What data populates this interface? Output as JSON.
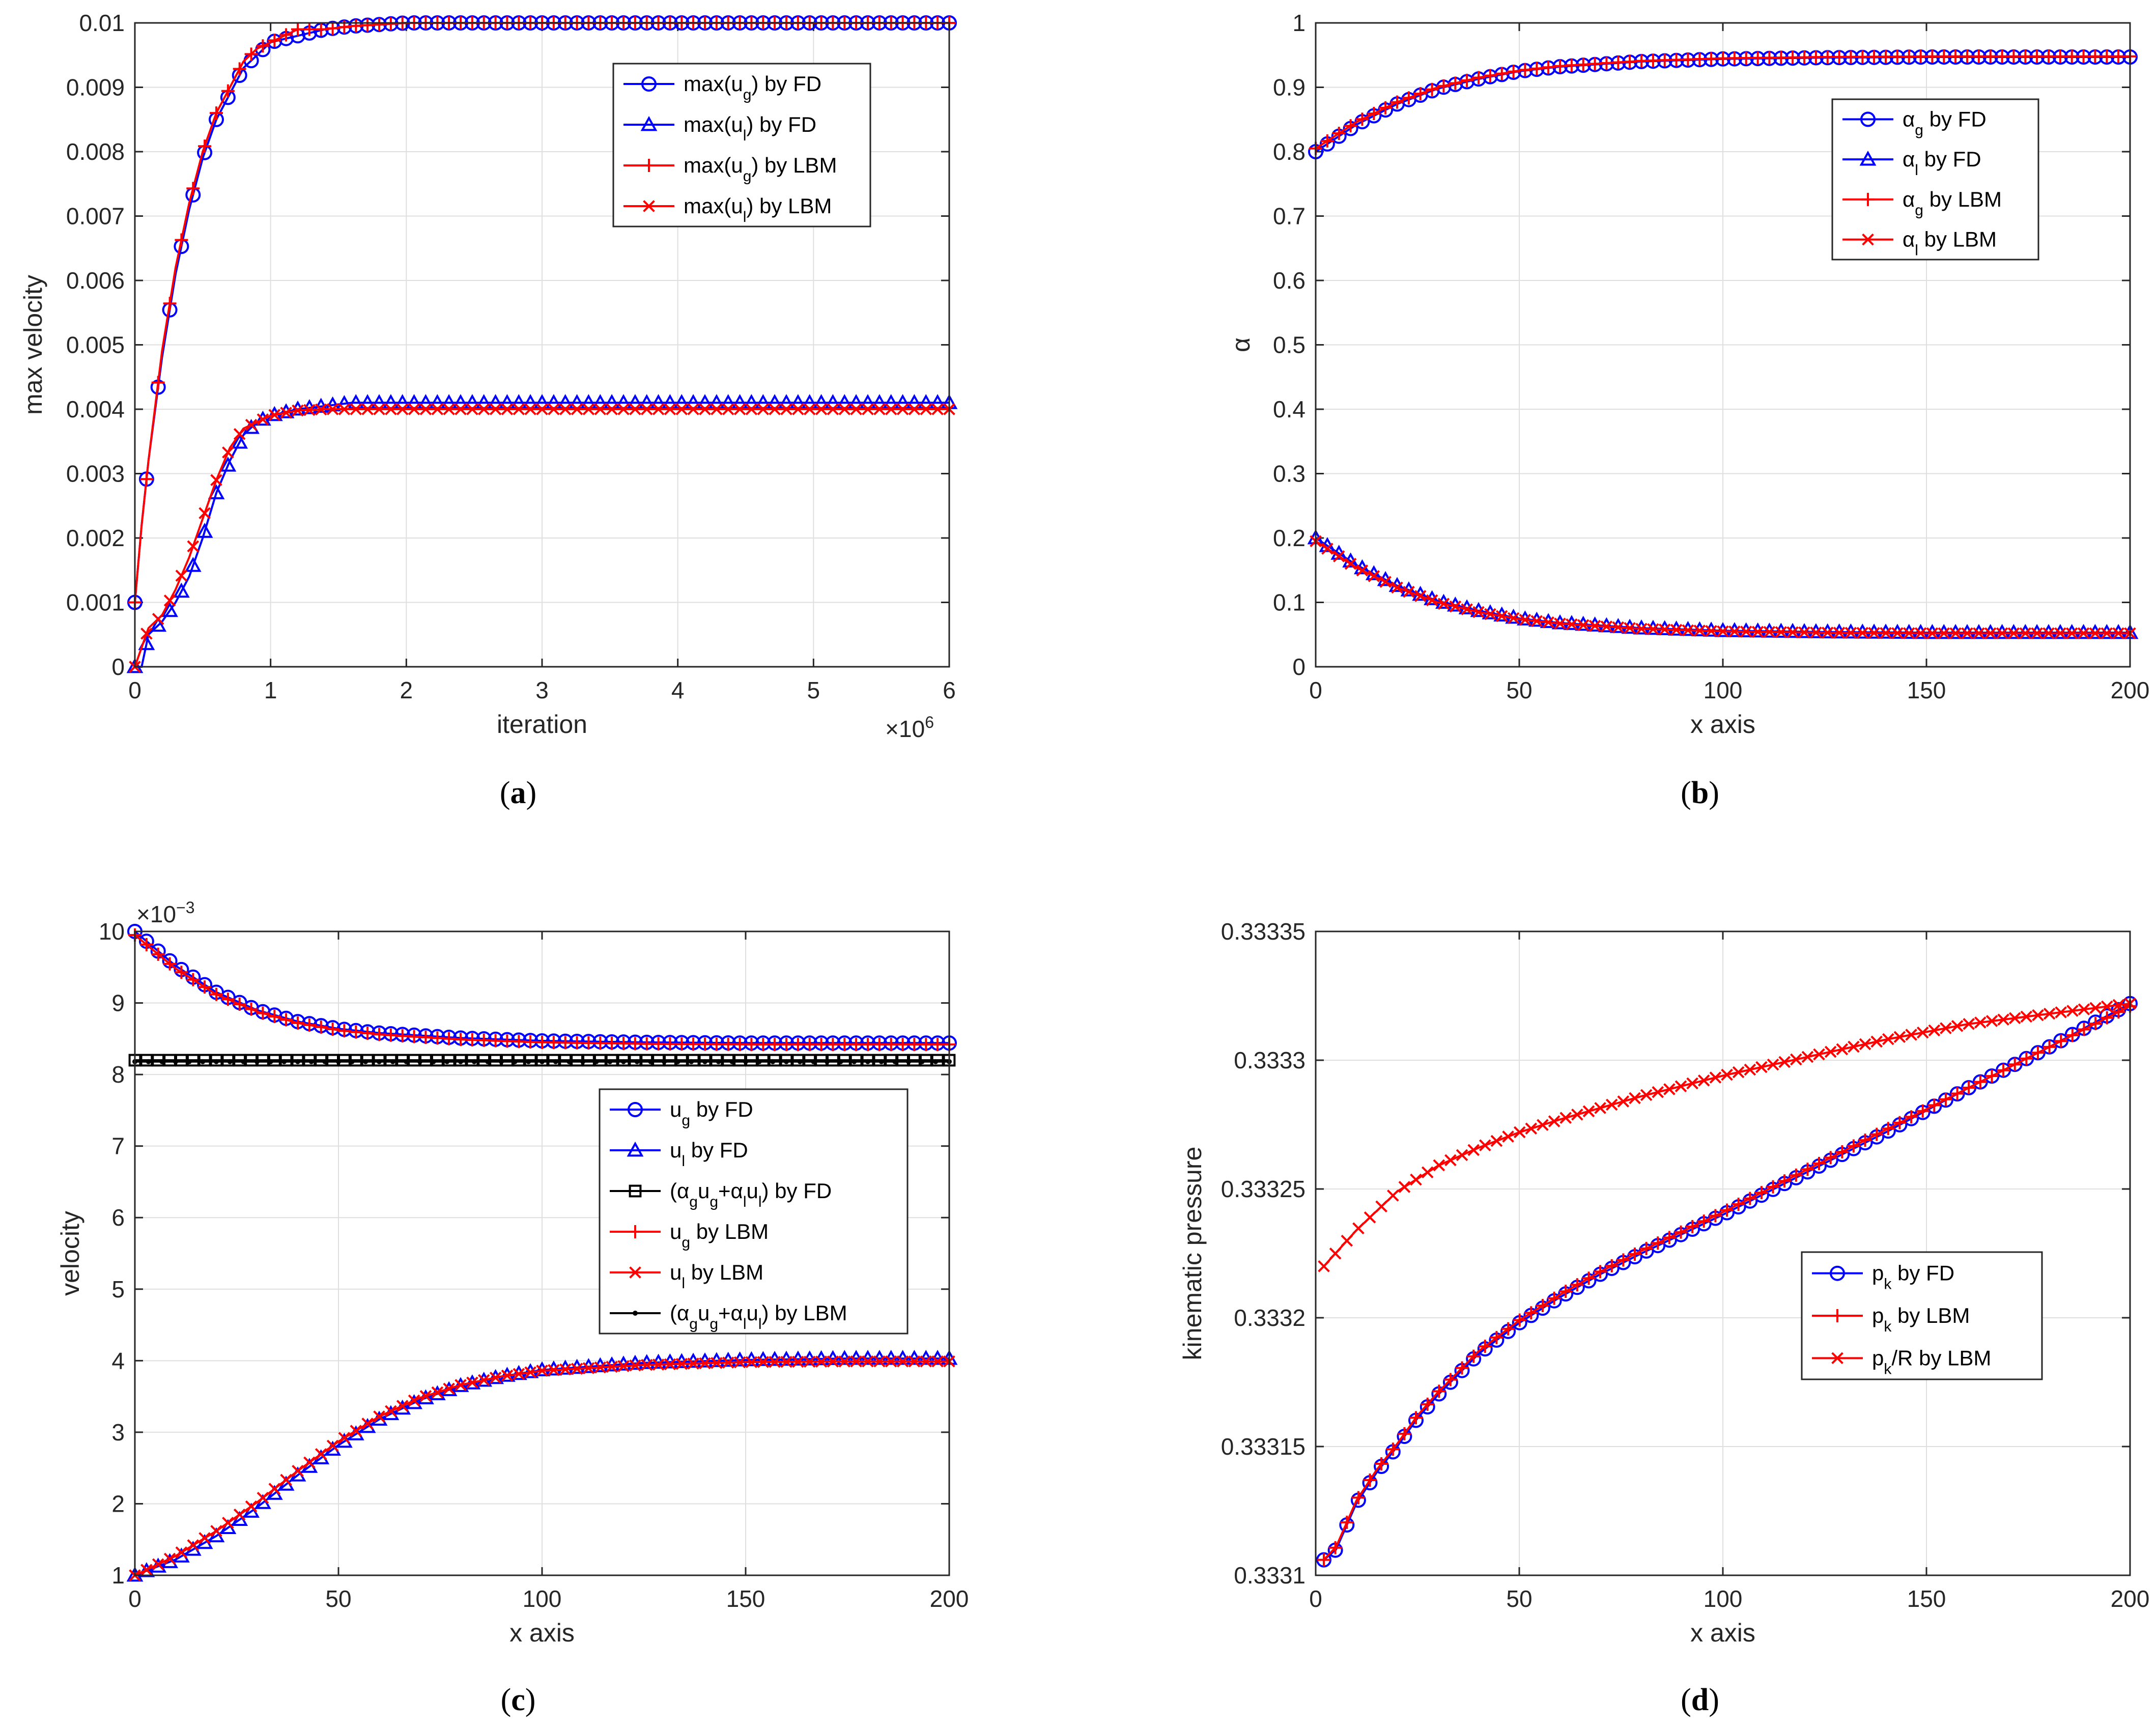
{
  "colors": {
    "fd": "#0000ff",
    "lbm": "#ff0000",
    "mix": "#000000",
    "grid": "#dfdfdf",
    "axis": "#262626"
  },
  "chart_data": [
    {
      "id": "a",
      "type": "line",
      "caption": "a",
      "xlabel": "iteration",
      "ylabel": "max velocity",
      "xlim": [
        0,
        6
      ],
      "ylim": [
        0,
        0.01
      ],
      "x_exponent": "×10",
      "x_exponent_power": "6",
      "xticks": [
        0,
        1,
        2,
        3,
        4,
        5,
        6
      ],
      "xtick_labels": [
        "0",
        "1",
        "2",
        "3",
        "4",
        "5",
        "6"
      ],
      "yticks": [
        0,
        0.001,
        0.002,
        0.003,
        0.004,
        0.005,
        0.006,
        0.007,
        0.008,
        0.009,
        0.01
      ],
      "ytick_labels": [
        "0",
        "0.001",
        "0.002",
        "0.003",
        "0.004",
        "0.005",
        "0.006",
        "0.007",
        "0.008",
        "0.009",
        "0.01"
      ],
      "grid": true,
      "legend_position": "top-right",
      "series": [
        {
          "name": "max(u_g) by FD",
          "label_parts": [
            "max(u",
            "g",
            ") by FD"
          ],
          "color": "fd",
          "marker": "circle",
          "x": [
            0,
            0.05,
            0.1,
            0.2,
            0.3,
            0.4,
            0.5,
            0.6,
            0.7,
            0.8,
            0.9,
            1.0,
            1.2,
            1.4,
            1.6,
            2.0,
            3.0,
            4.0,
            5.0,
            6.0
          ],
          "y": [
            0.001,
            0.0022,
            0.0032,
            0.0048,
            0.0061,
            0.0071,
            0.0079,
            0.0085,
            0.0089,
            0.0093,
            0.0095,
            0.0097,
            0.0098,
            0.0099,
            0.00995,
            0.01,
            0.01,
            0.01,
            0.01,
            0.01
          ]
        },
        {
          "name": "max(u_l) by FD",
          "label_parts": [
            "max(u",
            "l",
            ") by FD"
          ],
          "color": "fd",
          "marker": "triangle",
          "x": [
            0,
            0.05,
            0.1,
            0.2,
            0.3,
            0.4,
            0.5,
            0.6,
            0.7,
            0.8,
            0.9,
            1.0,
            1.2,
            1.4,
            1.6,
            2.0,
            3.0,
            4.0,
            5.0,
            6.0
          ],
          "y": [
            0,
            0,
            0.0005,
            0.0007,
            0.001,
            0.0014,
            0.002,
            0.0027,
            0.0032,
            0.0036,
            0.0038,
            0.0039,
            0.004,
            0.00405,
            0.0041,
            0.0041,
            0.0041,
            0.0041,
            0.0041,
            0.0041
          ]
        },
        {
          "name": "max(u_g) by LBM",
          "label_parts": [
            "max(u",
            "g",
            ") by LBM"
          ],
          "color": "lbm",
          "marker": "plus",
          "x": [
            0,
            0.05,
            0.1,
            0.2,
            0.3,
            0.4,
            0.5,
            0.6,
            0.7,
            0.8,
            0.9,
            1.0,
            1.2,
            1.4,
            1.6,
            2.0,
            3.0,
            4.0,
            5.0,
            6.0
          ],
          "y": [
            0.001,
            0.0022,
            0.0032,
            0.0049,
            0.0062,
            0.0072,
            0.008,
            0.0086,
            0.009,
            0.0094,
            0.0096,
            0.0097,
            0.0099,
            0.0099,
            0.00995,
            0.01,
            0.01,
            0.01,
            0.01,
            0.01
          ]
        },
        {
          "name": "max(u_l) by LBM",
          "label_parts": [
            "max(u",
            "l",
            ") by LBM"
          ],
          "color": "lbm",
          "marker": "x",
          "x": [
            0,
            0.05,
            0.1,
            0.2,
            0.3,
            0.4,
            0.5,
            0.6,
            0.7,
            0.8,
            0.9,
            1.0,
            1.2,
            1.4,
            1.6,
            2.0,
            3.0,
            4.0,
            5.0,
            6.0
          ],
          "y": [
            0,
            0.0003,
            0.0006,
            0.0008,
            0.0012,
            0.0017,
            0.0023,
            0.0029,
            0.0034,
            0.0037,
            0.0038,
            0.0039,
            0.00398,
            0.004,
            0.004,
            0.004,
            0.004,
            0.004,
            0.004,
            0.004
          ]
        }
      ]
    },
    {
      "id": "b",
      "type": "line",
      "caption": "b",
      "xlabel": "x axis",
      "ylabel": "α",
      "xlim": [
        0,
        200
      ],
      "ylim": [
        0,
        1
      ],
      "xticks": [
        0,
        50,
        100,
        150,
        200
      ],
      "xtick_labels": [
        "0",
        "50",
        "100",
        "150",
        "200"
      ],
      "yticks": [
        0,
        0.1,
        0.2,
        0.3,
        0.4,
        0.5,
        0.6,
        0.7,
        0.8,
        0.9,
        1
      ],
      "ytick_labels": [
        "0",
        "0.1",
        "0.2",
        "0.3",
        "0.4",
        "0.5",
        "0.6",
        "0.7",
        "0.8",
        "0.9",
        "1"
      ],
      "grid": true,
      "legend_position": "top-right",
      "series": [
        {
          "name": "α_g by FD",
          "label_parts": [
            "α",
            "g",
            " by FD"
          ],
          "color": "fd",
          "marker": "circle",
          "x": [
            0,
            10,
            20,
            30,
            40,
            50,
            60,
            80,
            100,
            125,
            150,
            175,
            200
          ],
          "y": [
            0.8,
            0.842,
            0.874,
            0.898,
            0.913,
            0.925,
            0.932,
            0.94,
            0.944,
            0.946,
            0.947,
            0.947,
            0.947
          ]
        },
        {
          "name": "α_l by FD",
          "label_parts": [
            "α",
            "l",
            " by FD"
          ],
          "color": "fd",
          "marker": "triangle",
          "x": [
            0,
            10,
            20,
            30,
            40,
            50,
            60,
            80,
            100,
            125,
            150,
            175,
            200
          ],
          "y": [
            0.2,
            0.158,
            0.126,
            0.102,
            0.087,
            0.075,
            0.068,
            0.06,
            0.056,
            0.054,
            0.053,
            0.053,
            0.053
          ]
        },
        {
          "name": "α_g by LBM",
          "label_parts": [
            "α",
            "g",
            " by LBM"
          ],
          "color": "lbm",
          "marker": "plus",
          "x": [
            0,
            10,
            20,
            30,
            40,
            50,
            60,
            80,
            100,
            125,
            150,
            175,
            200
          ],
          "y": [
            0.805,
            0.846,
            0.877,
            0.9,
            0.915,
            0.926,
            0.933,
            0.941,
            0.945,
            0.947,
            0.948,
            0.948,
            0.948
          ]
        },
        {
          "name": "α_l by LBM",
          "label_parts": [
            "α",
            "l",
            " by LBM"
          ],
          "color": "lbm",
          "marker": "x",
          "x": [
            0,
            10,
            20,
            30,
            40,
            50,
            60,
            80,
            100,
            125,
            150,
            175,
            200
          ],
          "y": [
            0.195,
            0.154,
            0.123,
            0.1,
            0.085,
            0.074,
            0.067,
            0.059,
            0.055,
            0.053,
            0.052,
            0.052,
            0.052
          ]
        }
      ]
    },
    {
      "id": "c",
      "type": "line",
      "caption": "c",
      "xlabel": "x axis",
      "ylabel": "velocity",
      "xlim": [
        0,
        200
      ],
      "ylim": [
        1,
        10
      ],
      "y_exponent": "×10",
      "y_exponent_power": "−3",
      "xticks": [
        0,
        50,
        100,
        150,
        200
      ],
      "xtick_labels": [
        "0",
        "50",
        "100",
        "150",
        "200"
      ],
      "yticks": [
        1,
        2,
        3,
        4,
        5,
        6,
        7,
        8,
        9,
        10
      ],
      "ytick_labels": [
        "1",
        "2",
        "3",
        "4",
        "5",
        "6",
        "7",
        "8",
        "9",
        "10"
      ],
      "grid": true,
      "legend_position": "right",
      "series": [
        {
          "name": "u_g by FD",
          "label_parts": [
            "u",
            "g",
            " by FD"
          ],
          "color": "fd",
          "marker": "circle",
          "x": [
            0,
            10,
            20,
            30,
            40,
            50,
            60,
            80,
            100,
            125,
            150,
            175,
            200
          ],
          "y": [
            10.0,
            9.52,
            9.15,
            8.9,
            8.74,
            8.64,
            8.58,
            8.51,
            8.47,
            8.45,
            8.44,
            8.44,
            8.44
          ]
        },
        {
          "name": "u_l by FD",
          "label_parts": [
            "u",
            "l",
            " by FD"
          ],
          "color": "fd",
          "marker": "triangle",
          "x": [
            0,
            10,
            20,
            30,
            40,
            50,
            60,
            70,
            80,
            90,
            100,
            125,
            150,
            175,
            200
          ],
          "y": [
            1.0,
            1.22,
            1.55,
            1.95,
            2.4,
            2.82,
            3.18,
            3.45,
            3.65,
            3.78,
            3.87,
            3.97,
            4.01,
            4.03,
            4.03
          ]
        },
        {
          "name": "(α_g u_g+α_l u_l) by FD",
          "label_parts": [
            "(α",
            "g",
            "u",
            "g",
            "+α",
            "l",
            "u",
            "l",
            ") by FD"
          ],
          "color": "mix",
          "marker": "square",
          "x": [
            0,
            50,
            100,
            150,
            200
          ],
          "y": [
            8.2,
            8.2,
            8.2,
            8.2,
            8.2
          ]
        },
        {
          "name": "u_g by LBM",
          "label_parts": [
            "u",
            "g",
            " by LBM"
          ],
          "color": "lbm",
          "marker": "plus",
          "x": [
            0,
            10,
            20,
            30,
            40,
            50,
            60,
            80,
            100,
            125,
            150,
            175,
            200
          ],
          "y": [
            9.95,
            9.48,
            9.12,
            8.88,
            8.72,
            8.62,
            8.56,
            8.49,
            8.45,
            8.43,
            8.42,
            8.42,
            8.42
          ]
        },
        {
          "name": "u_l by LBM",
          "label_parts": [
            "u",
            "l",
            " by LBM"
          ],
          "color": "lbm",
          "marker": "x",
          "x": [
            0,
            10,
            20,
            30,
            40,
            50,
            60,
            70,
            80,
            90,
            100,
            125,
            150,
            175,
            200
          ],
          "y": [
            1.0,
            1.27,
            1.62,
            2.02,
            2.46,
            2.87,
            3.22,
            3.48,
            3.66,
            3.78,
            3.86,
            3.94,
            3.98,
            3.99,
            3.99
          ]
        },
        {
          "name": "(α_g u_g+α_l u_l) by LBM",
          "label_parts": [
            "(α",
            "g",
            "u",
            "g",
            "+α",
            "l",
            "u",
            "l",
            ") by LBM"
          ],
          "color": "mix",
          "marker": "dot",
          "x": [
            0,
            50,
            100,
            150,
            200
          ],
          "y": [
            8.18,
            8.18,
            8.18,
            8.18,
            8.18
          ]
        }
      ]
    },
    {
      "id": "d",
      "type": "line",
      "caption": "d",
      "xlabel": "x axis",
      "ylabel": "kinematic pressure",
      "xlim": [
        0,
        200
      ],
      "ylim": [
        0.3331,
        0.33335
      ],
      "xticks": [
        0,
        50,
        100,
        150,
        200
      ],
      "xtick_labels": [
        "0",
        "50",
        "100",
        "150",
        "200"
      ],
      "yticks": [
        0.3331,
        0.33315,
        0.3332,
        0.33325,
        0.3333,
        0.33335
      ],
      "ytick_labels": [
        "0.3331",
        "0.33315",
        "0.3332",
        "0.33325",
        "0.3333",
        "0.33335"
      ],
      "grid": true,
      "legend_position": "right",
      "series": [
        {
          "name": "p_k by FD",
          "label_parts": [
            "p",
            "k",
            " by FD"
          ],
          "color": "fd",
          "marker": "circle",
          "x": [
            2,
            5,
            10,
            15,
            20,
            25,
            30,
            40,
            50,
            60,
            70,
            80,
            100,
            120,
            140,
            160,
            180,
            200
          ],
          "y": [
            0.333106,
            0.33311,
            0.333128,
            0.33314,
            0.33315,
            0.333161,
            0.33317,
            0.333186,
            0.333198,
            0.333208,
            0.333217,
            0.333225,
            0.33324,
            0.333256,
            0.333272,
            0.333289,
            0.333305,
            0.333322
          ]
        },
        {
          "name": "p_k by LBM",
          "label_parts": [
            "p",
            "k",
            " by LBM"
          ],
          "color": "lbm",
          "marker": "plus",
          "x": [
            2,
            5,
            10,
            15,
            20,
            25,
            30,
            40,
            50,
            60,
            70,
            80,
            100,
            120,
            140,
            160,
            180,
            200
          ],
          "y": [
            0.333106,
            0.333111,
            0.333129,
            0.333141,
            0.333151,
            0.333162,
            0.333171,
            0.333187,
            0.333199,
            0.333209,
            0.333218,
            0.333226,
            0.333241,
            0.333257,
            0.333273,
            0.333289,
            0.333305,
            0.333321
          ]
        },
        {
          "name": "p_k/R by LBM",
          "label_parts": [
            "p",
            "k",
            "/R by LBM"
          ],
          "color": "lbm",
          "marker": "x",
          "x": [
            2,
            10,
            20,
            30,
            40,
            50,
            60,
            80,
            100,
            120,
            140,
            160,
            180,
            200
          ],
          "y": [
            0.33322,
            0.333234,
            0.333249,
            0.333259,
            0.333266,
            0.333272,
            0.333277,
            0.333286,
            0.333294,
            0.333301,
            0.333308,
            0.333314,
            0.333318,
            0.333322
          ]
        }
      ]
    }
  ]
}
